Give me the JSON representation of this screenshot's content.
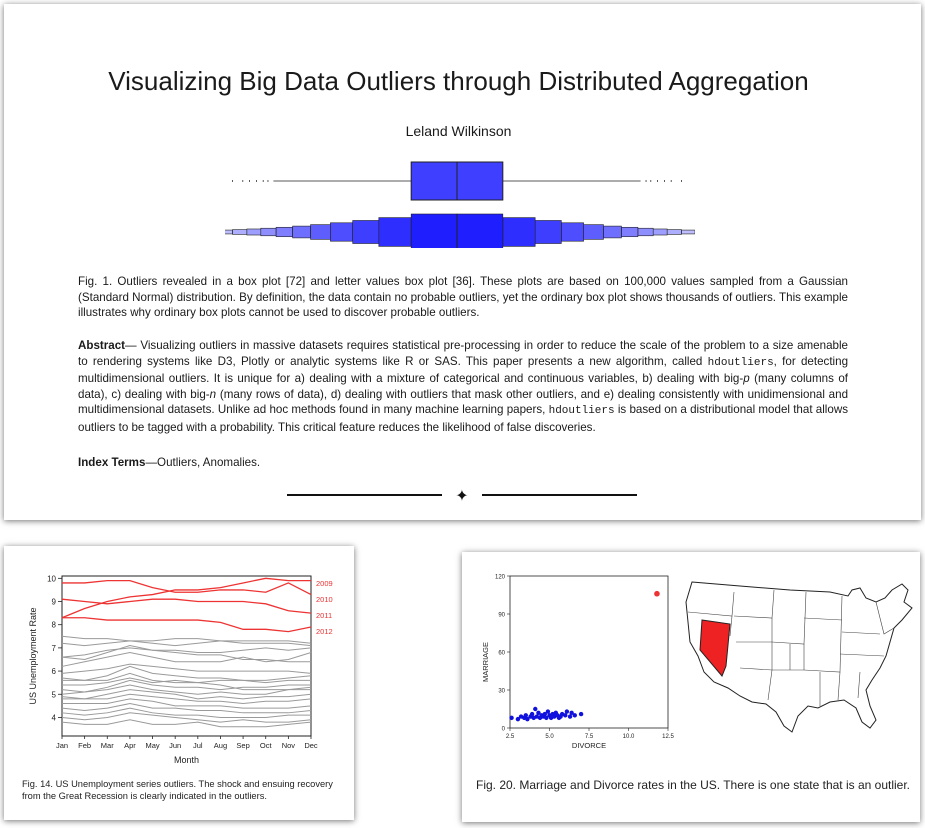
{
  "top": {
    "title": "Visualizing Big Data Outliers through Distributed Aggregation",
    "author": "Leland Wilkinson",
    "fig1_caption": "Fig. 1.  Outliers revealed in a box plot [72] and letter values box plot [36].  These plots are based on 100,000 values sampled from a Gaussian (Standard Normal) distribution.  By definition, the data contain no probable outliers, yet the ordinary box plot shows thousands of outliers. This example illustrates why ordinary box plots cannot be used to discover probable outliers.",
    "abstract": {
      "label": "Abstract",
      "p1": "— Visualizing outliers in massive datasets requires statistical pre-processing in order to reduce the scale of the problem to a size amenable to rendering systems like D3, Plotly or analytic systems like R or SAS. This paper presents a new algorithm, called ",
      "code1": "hdoutliers",
      "p2": ", for detecting multidimensional outliers.  It is unique for a) dealing with a mixture of categorical and continuous variables, b) dealing with big-",
      "p_var": "p",
      "p3": " (many columns of data), c) dealing with big-",
      "n_var": "n",
      "p4": " (many rows of data), d) dealing with outliers that mask other outliers, and e) dealing consistently with unidimensional and multidimensional datasets. Unlike ad hoc methods found in many machine learning papers, ",
      "code2": "hdoutliers",
      "p5": " is based on a distributional model that allows outliers to be tagged with a probability.  This critical feature reduces the likelihood of false discoveries."
    },
    "index_terms": {
      "label": "Index Terms",
      "text": "—Outliers, Anomalies."
    },
    "divider_glyph": "✦"
  },
  "fig14": {
    "caption": "Fig. 14.  US Unemployment series outliers.  The shock and ensuing recovery from the Great Recession is clearly indicated in the outliers."
  },
  "fig20": {
    "caption": "Fig. 20. Marriage and Divorce rates in the US. There is one state that is an outlier."
  },
  "colors": {
    "box_blue": "#3f3fff",
    "outlier_red": "#ee3333",
    "series_gray": "#9a9a9a",
    "point_blue": "#1111dd"
  },
  "chart_data": [
    {
      "type": "line",
      "x": [
        "Jan",
        "Feb",
        "Mar",
        "Apr",
        "May",
        "Jun",
        "Jul",
        "Aug",
        "Sep",
        "Oct",
        "Nov",
        "Dec"
      ],
      "xlabel": "Month",
      "ylabel": "US Unemployment Rate",
      "ylim": [
        3.2,
        10.1
      ],
      "yticks": [
        4,
        5,
        6,
        7,
        8,
        9,
        10
      ],
      "grid": false,
      "outlier_series": [
        {
          "name": "2009",
          "values": [
            8.3,
            8.7,
            9.0,
            9.2,
            9.3,
            9.5,
            9.5,
            9.6,
            9.8,
            10.0,
            9.9,
            9.9
          ]
        },
        {
          "name": "2010",
          "values": [
            9.8,
            9.8,
            9.9,
            9.9,
            9.6,
            9.4,
            9.4,
            9.5,
            9.5,
            9.4,
            9.8,
            9.3
          ]
        },
        {
          "name": "2011",
          "values": [
            9.1,
            9.0,
            8.9,
            9.0,
            9.1,
            9.1,
            9.0,
            9.0,
            9.0,
            8.9,
            8.6,
            8.5
          ]
        },
        {
          "name": "2012",
          "values": [
            8.3,
            8.3,
            8.2,
            8.2,
            8.2,
            8.2,
            8.2,
            8.1,
            7.8,
            7.8,
            7.7,
            7.9
          ]
        }
      ],
      "background_series": [
        [
          7.5,
          7.4,
          7.4,
          7.3,
          7.3,
          7.4,
          7.4,
          7.3,
          7.2,
          7.2,
          7.2,
          7.1
        ],
        [
          7.2,
          7.1,
          7.2,
          7.3,
          7.2,
          7.1,
          7.2,
          7.3,
          7.3,
          7.3,
          7.3,
          7.2
        ],
        [
          6.6,
          6.7,
          6.9,
          7.0,
          6.9,
          6.9,
          6.8,
          6.8,
          6.9,
          7.0,
          6.9,
          7.0
        ],
        [
          6.6,
          6.5,
          6.8,
          7.1,
          6.9,
          6.8,
          6.7,
          6.7,
          6.5,
          6.5,
          6.4,
          6.4
        ],
        [
          6.2,
          6.4,
          6.6,
          6.8,
          6.6,
          6.4,
          6.4,
          6.4,
          6.6,
          6.4,
          6.5,
          6.8
        ],
        [
          5.9,
          6.0,
          6.1,
          6.3,
          6.2,
          6.1,
          6.0,
          6.0,
          6.0,
          6.0,
          6.0,
          5.9
        ],
        [
          5.6,
          5.6,
          5.8,
          6.2,
          5.9,
          5.8,
          5.7,
          5.7,
          5.6,
          5.6,
          5.7,
          5.8
        ],
        [
          5.7,
          5.6,
          5.6,
          5.9,
          5.6,
          5.5,
          5.5,
          5.6,
          5.6,
          5.5,
          5.6,
          5.6
        ],
        [
          5.4,
          5.4,
          5.5,
          5.7,
          5.5,
          5.6,
          5.5,
          5.4,
          5.2,
          5.2,
          5.2,
          5.3
        ],
        [
          5.2,
          5.1,
          5.3,
          5.6,
          5.4,
          5.3,
          5.3,
          5.2,
          5.3,
          5.3,
          5.4,
          5.4
        ],
        [
          5.0,
          5.1,
          5.2,
          5.4,
          5.2,
          5.1,
          5.0,
          5.1,
          5.0,
          5.0,
          5.2,
          5.2
        ],
        [
          4.9,
          4.8,
          5.0,
          5.2,
          5.1,
          5.0,
          4.8,
          4.9,
          4.8,
          4.9,
          4.9,
          5.0
        ],
        [
          4.8,
          4.8,
          4.8,
          5.0,
          4.9,
          4.8,
          4.7,
          4.7,
          4.6,
          4.7,
          4.7,
          4.8
        ],
        [
          4.6,
          4.6,
          4.6,
          4.8,
          4.7,
          4.5,
          4.5,
          4.5,
          4.4,
          4.4,
          4.4,
          4.5
        ],
        [
          4.4,
          4.3,
          4.4,
          4.6,
          4.4,
          4.4,
          4.3,
          4.3,
          4.2,
          4.2,
          4.2,
          4.3
        ],
        [
          4.2,
          4.1,
          4.2,
          4.4,
          4.2,
          4.1,
          4.1,
          4.0,
          4.0,
          4.0,
          4.1,
          4.1
        ],
        [
          4.0,
          3.9,
          4.0,
          4.2,
          4.1,
          4.0,
          3.9,
          3.8,
          3.9,
          3.8,
          3.8,
          3.9
        ],
        [
          3.8,
          3.7,
          3.7,
          3.9,
          3.7,
          3.7,
          3.8,
          3.6,
          3.6,
          3.6,
          3.7,
          3.8
        ]
      ]
    },
    {
      "type": "scatter",
      "xlabel": "DIVORCE",
      "ylabel": "MARRIAGE",
      "xlim": [
        2.5,
        12.5
      ],
      "ylim": [
        0,
        120
      ],
      "xticks": [
        2.5,
        5.0,
        7.5,
        10.0,
        12.5
      ],
      "yticks": [
        0,
        30,
        60,
        90,
        120
      ],
      "grid": false,
      "outlier": {
        "x": 11.8,
        "y": 106
      },
      "points": [
        {
          "x": 2.6,
          "y": 8
        },
        {
          "x": 3.0,
          "y": 7
        },
        {
          "x": 3.2,
          "y": 9
        },
        {
          "x": 3.4,
          "y": 8
        },
        {
          "x": 3.5,
          "y": 10
        },
        {
          "x": 3.6,
          "y": 7
        },
        {
          "x": 3.8,
          "y": 9
        },
        {
          "x": 3.9,
          "y": 11
        },
        {
          "x": 4.0,
          "y": 8
        },
        {
          "x": 4.1,
          "y": 15
        },
        {
          "x": 4.2,
          "y": 9
        },
        {
          "x": 4.3,
          "y": 12
        },
        {
          "x": 4.4,
          "y": 8
        },
        {
          "x": 4.5,
          "y": 10
        },
        {
          "x": 4.6,
          "y": 9
        },
        {
          "x": 4.7,
          "y": 11
        },
        {
          "x": 4.8,
          "y": 8
        },
        {
          "x": 4.9,
          "y": 13
        },
        {
          "x": 5.0,
          "y": 10
        },
        {
          "x": 5.1,
          "y": 8
        },
        {
          "x": 5.2,
          "y": 11
        },
        {
          "x": 5.3,
          "y": 9
        },
        {
          "x": 5.4,
          "y": 12
        },
        {
          "x": 5.5,
          "y": 10
        },
        {
          "x": 5.6,
          "y": 8
        },
        {
          "x": 5.7,
          "y": 9
        },
        {
          "x": 5.8,
          "y": 11
        },
        {
          "x": 6.0,
          "y": 10
        },
        {
          "x": 6.1,
          "y": 13
        },
        {
          "x": 6.3,
          "y": 9
        },
        {
          "x": 6.4,
          "y": 12
        },
        {
          "x": 6.6,
          "y": 10
        },
        {
          "x": 7.0,
          "y": 11
        }
      ]
    }
  ]
}
